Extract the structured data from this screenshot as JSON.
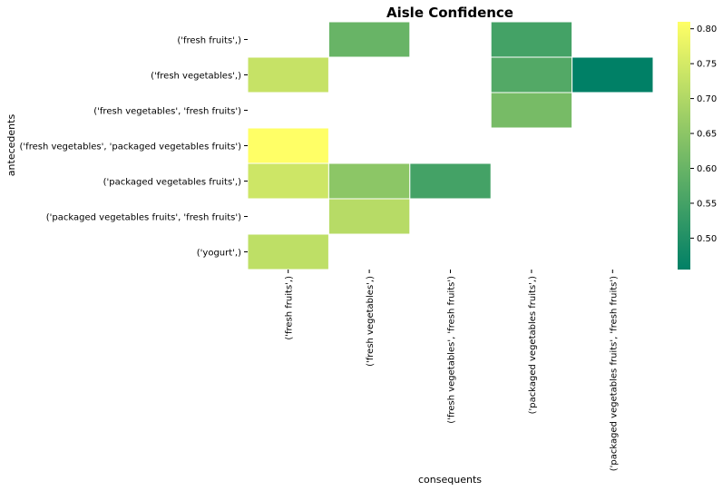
{
  "chart_data": {
    "type": "heatmap",
    "title": "Aisle Confidence",
    "xlabel": "consequents",
    "ylabel": "antecedents",
    "rows": [
      "('fresh fruits',)",
      "('fresh vegetables',)",
      "('fresh vegetables', 'fresh fruits')",
      "('fresh vegetables', 'packaged vegetables fruits')",
      "('packaged vegetables fruits',)",
      "('packaged vegetables fruits', 'fresh fruits')",
      "('yogurt',)"
    ],
    "columns": [
      "('fresh fruits',)",
      "('fresh vegetables',)",
      "('fresh vegetables', 'fresh fruits')",
      "('packaged vegetables fruits',)",
      "('packaged vegetables fruits', 'fresh fruits')"
    ],
    "values": [
      [
        null,
        0.6,
        null,
        0.55,
        null
      ],
      [
        0.73,
        null,
        null,
        0.57,
        0.455
      ],
      [
        null,
        null,
        null,
        0.62,
        null
      ],
      [
        0.81,
        null,
        null,
        null,
        null
      ],
      [
        0.74,
        0.65,
        0.55,
        null,
        null
      ],
      [
        null,
        0.71,
        null,
        null,
        null
      ],
      [
        0.72,
        null,
        null,
        null,
        null
      ]
    ],
    "colorbar": {
      "min": 0.455,
      "max": 0.81,
      "ticks": [
        0.5,
        0.55,
        0.6,
        0.65,
        0.7,
        0.75,
        0.8
      ],
      "tick_labels": [
        "0.50",
        "0.55",
        "0.60",
        "0.65",
        "0.70",
        "0.75",
        "0.80"
      ],
      "colormap": "summer"
    }
  }
}
